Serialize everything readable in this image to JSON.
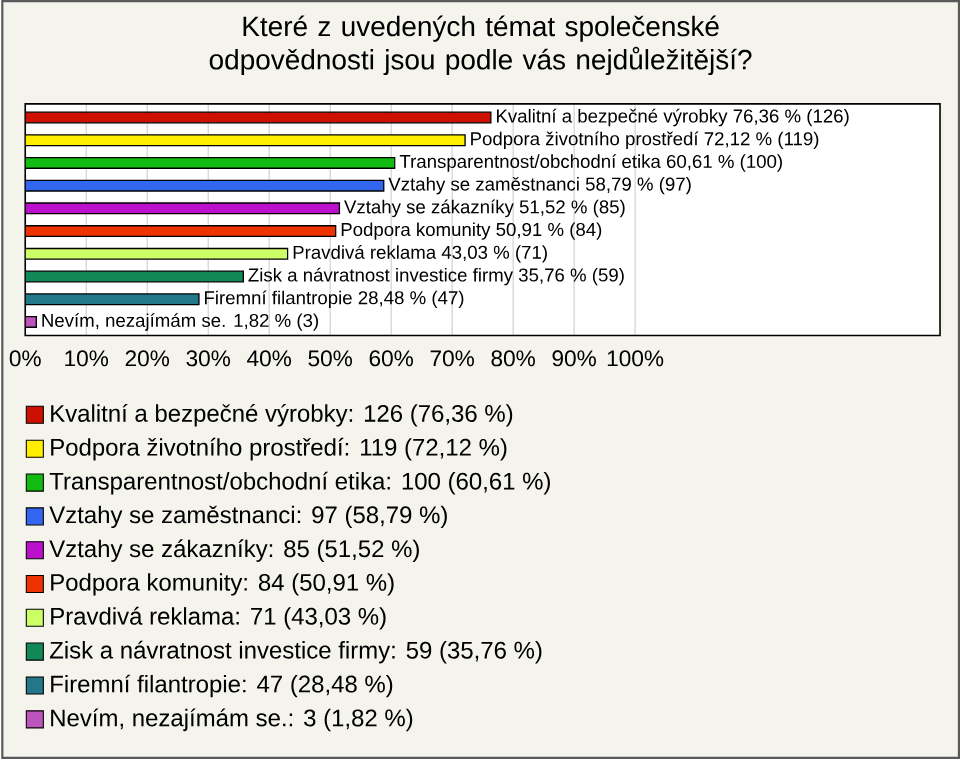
{
  "chart_data": {
    "type": "bar",
    "orientation": "horizontal",
    "title": "Které z uvedených témat společenské odpovědnosti jsou podle vás nejdůležitější?",
    "categories": [
      null,
      null,
      null,
      null,
      null,
      null,
      null,
      null,
      null,
      null
    ],
    "series": [
      {
        "name": "Kvalitní a bezpečné výrobky: 126 (76,36 %)",
        "color": "#cc1100",
        "values": [
          76.36,
          null,
          null,
          null,
          null,
          null,
          null,
          null,
          null,
          null
        ],
        "value_labels": [
          "Kvalitní a bezpečné výrobky 76,36 % (126)",
          null,
          null,
          null,
          null,
          null,
          null,
          null,
          null,
          null
        ]
      },
      {
        "name": "Podpora životního prostředí: 119 (72,12 %)",
        "color": "#ffee00",
        "values": [
          null,
          72.12,
          null,
          null,
          null,
          null,
          null,
          null,
          null,
          null
        ],
        "value_labels": [
          null,
          "Podpora životního prostředí 72,12 % (119)",
          null,
          null,
          null,
          null,
          null,
          null,
          null,
          null
        ]
      },
      {
        "name": "Transparentnost/obchodní etika: 100 (60,61 %)",
        "color": "#11bb11",
        "values": [
          null,
          null,
          60.61,
          null,
          null,
          null,
          null,
          null,
          null,
          null
        ],
        "value_labels": [
          null,
          null,
          "Transparentnost/obchodní etika 60,61 % (100)",
          null,
          null,
          null,
          null,
          null,
          null,
          null
        ]
      },
      {
        "name": "Vztahy se zaměstnanci: 97 (58,79 %)",
        "color": "#3366ee",
        "values": [
          null,
          null,
          null,
          58.79,
          null,
          null,
          null,
          null,
          null,
          null
        ],
        "value_labels": [
          null,
          null,
          null,
          "Vztahy se zaměstnanci 58,79 % (97)",
          null,
          null,
          null,
          null,
          null,
          null
        ]
      },
      {
        "name": "Vztahy se zákazníky: 85 (51,52 %)",
        "color": "#bb11cc",
        "values": [
          null,
          null,
          null,
          null,
          51.52,
          null,
          null,
          null,
          null,
          null
        ],
        "value_labels": [
          null,
          null,
          null,
          null,
          "Vztahy se zákazníky 51,52 % (85)",
          null,
          null,
          null,
          null,
          null
        ]
      },
      {
        "name": "Podpora komunity: 84 (50,91 %)",
        "color": "#ee3300",
        "values": [
          null,
          null,
          null,
          null,
          null,
          50.91,
          null,
          null,
          null,
          null
        ],
        "value_labels": [
          null,
          null,
          null,
          null,
          null,
          "Podpora komunity 50,91 % (84)",
          null,
          null,
          null,
          null
        ]
      },
      {
        "name": "Pravdivá reklama: 71 (43,03 %)",
        "color": "#ccff66",
        "values": [
          null,
          null,
          null,
          null,
          null,
          null,
          43.03,
          null,
          null,
          null
        ],
        "value_labels": [
          null,
          null,
          null,
          null,
          null,
          null,
          "Pravdivá reklama 43,03 % (71)",
          null,
          null,
          null
        ]
      },
      {
        "name": "Zisk a návratnost investice firmy: 59 (35,76 %)",
        "color": "#118855",
        "values": [
          null,
          null,
          null,
          null,
          null,
          null,
          null,
          35.76,
          null,
          null
        ],
        "value_labels": [
          null,
          null,
          null,
          null,
          null,
          null,
          null,
          "Zisk a návratnost investice firmy 35,76 % (59)",
          null,
          null
        ]
      },
      {
        "name": "Firemní filantropie: 47 (28,48 %)",
        "color": "#227788",
        "values": [
          null,
          null,
          null,
          null,
          null,
          null,
          null,
          null,
          28.48,
          null
        ],
        "value_labels": [
          null,
          null,
          null,
          null,
          null,
          null,
          null,
          null,
          "Firemní filantropie 28,48 % (47)",
          null
        ]
      },
      {
        "name": "Nevím, nezajímám se.: 3 (1,82 %)",
        "color": "#bb55bb",
        "values": [
          null,
          null,
          null,
          null,
          null,
          null,
          null,
          null,
          null,
          1.82
        ],
        "value_labels": [
          null,
          null,
          null,
          null,
          null,
          null,
          null,
          null,
          null,
          "Nevím, nezajímám se. 1,82 % (3)"
        ]
      }
    ],
    "xlim": [
      0,
      150
    ],
    "xticks": [
      {
        "value": 0,
        "label": "0%"
      },
      {
        "value": 10,
        "label": "10%"
      },
      {
        "value": 20,
        "label": "20%"
      },
      {
        "value": 30,
        "label": "30%"
      },
      {
        "value": 40,
        "label": "40%"
      },
      {
        "value": 50,
        "label": "50%"
      },
      {
        "value": 60,
        "label": "60%"
      },
      {
        "value": 70,
        "label": "70%"
      },
      {
        "value": 80,
        "label": "80%"
      },
      {
        "value": 90,
        "label": "90%"
      },
      {
        "value": 100,
        "label": "100%"
      }
    ],
    "grid": "x",
    "legend": "bottom",
    "tick_labels": "x"
  }
}
